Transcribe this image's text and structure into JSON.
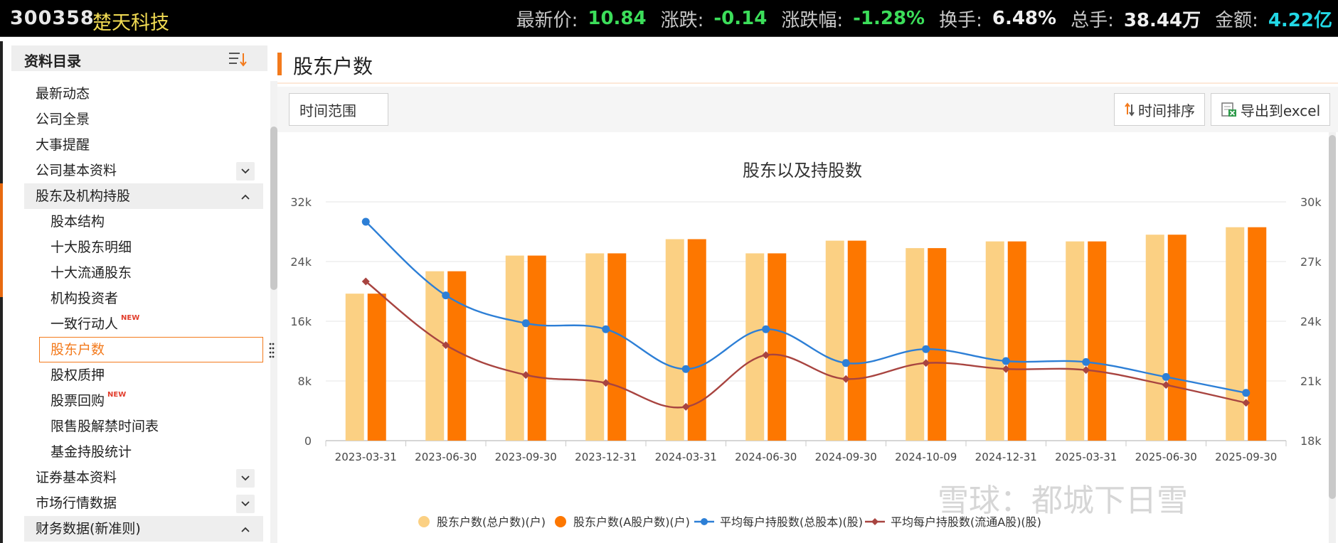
{
  "quote": {
    "code": "300358",
    "name": "楚天科技",
    "items": [
      {
        "label": "最新价:",
        "value": "10.84",
        "color": "#3cde5a"
      },
      {
        "label": "涨跌:",
        "value": "-0.14",
        "color": "#3cde5a"
      },
      {
        "label": "涨跌幅:",
        "value": "-1.28%",
        "color": "#3cde5a"
      },
      {
        "label": "换手:",
        "value": "6.48%",
        "color": "#f0f0f0"
      },
      {
        "label": "总手:",
        "value": "38.44万",
        "color": "#f0f0f0"
      },
      {
        "label": "金额:",
        "value": "4.22亿",
        "color": "#22d8e6"
      }
    ]
  },
  "sidebar": {
    "title": "资料目录",
    "items": [
      {
        "label": "最新动态",
        "level": 0
      },
      {
        "label": "公司全景",
        "level": 0
      },
      {
        "label": "大事提醒",
        "level": 0
      },
      {
        "label": "公司基本资料",
        "level": 0,
        "chevron": "down"
      },
      {
        "label": "股东及机构持股",
        "level": 0,
        "chevron": "up",
        "group": true
      },
      {
        "label": "股本结构",
        "level": 1
      },
      {
        "label": "十大股东明细",
        "level": 1
      },
      {
        "label": "十大流通股东",
        "level": 1
      },
      {
        "label": "机构投资者",
        "level": 1
      },
      {
        "label": "一致行动人",
        "level": 1,
        "badge": "NEW"
      },
      {
        "label": "股东户数",
        "level": 1,
        "active": true
      },
      {
        "label": "股权质押",
        "level": 1
      },
      {
        "label": "股票回购",
        "level": 1,
        "badge": "NEW"
      },
      {
        "label": "限售股解禁时间表",
        "level": 1
      },
      {
        "label": "基金持股统计",
        "level": 1
      },
      {
        "label": "证券基本资料",
        "level": 0,
        "chevron": "down"
      },
      {
        "label": "市场行情数据",
        "level": 0,
        "chevron": "down"
      },
      {
        "label": "财务数据(新准则)",
        "level": 0,
        "chevron": "up",
        "group": true
      }
    ]
  },
  "main": {
    "title": "股东户数",
    "range_label": "时间范围",
    "sort_label": "时间排序",
    "export_label": "导出到excel"
  },
  "chart_data": {
    "type": "bar",
    "title": "股东以及持股数",
    "categories": [
      "2023-03-31",
      "2023-06-30",
      "2023-09-30",
      "2023-12-31",
      "2024-03-31",
      "2024-06-30",
      "2024-09-30",
      "2024-10-09",
      "2024-12-31",
      "2025-03-31",
      "2025-06-30",
      "2025-09-30"
    ],
    "category_labels_visible": [
      "2023-03-31",
      "2023-06-30",
      "2023-09-30",
      "2023-12-31",
      "2024-03-31",
      "2024-06-30",
      "2024-09-30",
      "2024-10-09",
      "2024-12-31",
      "2025-03-31",
      "2025-06-30",
      "2025-09-30"
    ],
    "y_left": {
      "ticks": [
        "0",
        "8k",
        "16k",
        "24k",
        "32k"
      ],
      "min": 0,
      "max": 32000
    },
    "y_right": {
      "ticks": [
        "18k",
        "21k",
        "24k",
        "27k",
        "30k"
      ],
      "min": 18000,
      "max": 30000
    },
    "series": [
      {
        "name": "股东户数(总户数)(户)",
        "type": "bar",
        "axis": "left",
        "color": "#fbd083",
        "values": [
          19700,
          22700,
          24800,
          25100,
          27000,
          25100,
          26800,
          25800,
          26700,
          26700,
          27600,
          28600
        ]
      },
      {
        "name": "股东户数(A股户数)(户)",
        "type": "bar",
        "axis": "left",
        "color": "#fd7700",
        "values": [
          19700,
          22700,
          24800,
          25100,
          27000,
          25100,
          26800,
          25800,
          26700,
          26700,
          27600,
          28600
        ]
      },
      {
        "name": "平均每户持股数(总股本)(股)",
        "type": "line",
        "axis": "right",
        "color": "#2d7fd6",
        "marker": "circle",
        "values": [
          29000,
          25300,
          23900,
          23600,
          21600,
          23600,
          21900,
          22600,
          22000,
          21950,
          21200,
          20400
        ]
      },
      {
        "name": "平均每户持股数(流通A股)(股)",
        "type": "line",
        "axis": "right",
        "color": "#a84440",
        "marker": "diamond",
        "values": [
          26000,
          22800,
          21300,
          20900,
          19700,
          22300,
          21100,
          21900,
          21600,
          21550,
          20800,
          19900
        ]
      }
    ],
    "legend_position": "bottom",
    "grid": true
  },
  "watermark": "雪球：都城下日雪"
}
